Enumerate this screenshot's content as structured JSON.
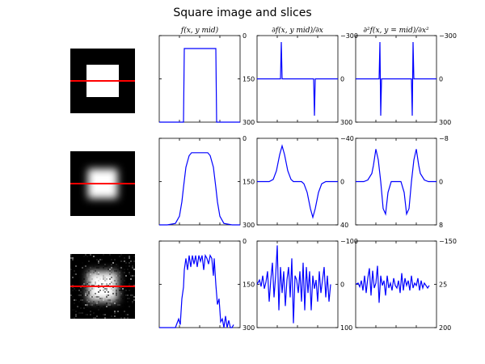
{
  "title": "Square image and slices",
  "colors": {
    "line": "#0000ff",
    "slice": "#ff0000",
    "image_bg": "#000000",
    "image_fg": "#ffffff"
  },
  "chart_data": [
    {
      "type": "image",
      "row": 0,
      "col": 0,
      "style": "sharp",
      "slice_position": 0.5
    },
    {
      "type": "line",
      "row": 0,
      "col": 1,
      "title": "f(x, y    mid)",
      "ylim": [
        0,
        300
      ],
      "yticks": [
        "0",
        "150",
        "300"
      ],
      "tick_side": "right",
      "x": [
        0,
        10,
        22,
        30,
        31,
        70,
        71,
        80,
        100
      ],
      "values": [
        0,
        0,
        0,
        0,
        255,
        255,
        0,
        0,
        0
      ]
    },
    {
      "type": "line",
      "row": 0,
      "col": 2,
      "title": "∂f(x, y    mid)/∂x",
      "ylim": [
        -300,
        300
      ],
      "yticks": [
        "−300",
        "0",
        "300"
      ],
      "tick_side": "right",
      "x": [
        0,
        25,
        29,
        30,
        31,
        33,
        70,
        71,
        72,
        74,
        100
      ],
      "values": [
        0,
        0,
        0,
        255,
        0,
        0,
        0,
        -255,
        0,
        0,
        0
      ]
    },
    {
      "type": "line",
      "row": 0,
      "col": 3,
      "title": "∂²f(x, y = mid)/∂x²",
      "ylim": [
        -300,
        300
      ],
      "yticks": [
        "−300",
        "0",
        "300"
      ],
      "tick_side": "right",
      "x": [
        0,
        10,
        28,
        29,
        30,
        31,
        32,
        69,
        70,
        71,
        72,
        73,
        90,
        100
      ],
      "values": [
        0,
        0,
        0,
        0,
        255,
        -255,
        0,
        0,
        -255,
        255,
        0,
        0,
        0,
        0
      ]
    },
    {
      "type": "image",
      "row": 1,
      "col": 0,
      "style": "blurred",
      "slice_position": 0.5
    },
    {
      "type": "line",
      "row": 1,
      "col": 1,
      "title": "",
      "ylim": [
        0,
        300
      ],
      "yticks": [
        "0",
        "150",
        "300"
      ],
      "tick_side": "right",
      "x": [
        0,
        10,
        20,
        25,
        28,
        30,
        33,
        37,
        40,
        60,
        63,
        67,
        70,
        72,
        75,
        80,
        90,
        100
      ],
      "values": [
        0,
        0,
        5,
        30,
        80,
        130,
        200,
        240,
        250,
        250,
        240,
        200,
        130,
        80,
        30,
        5,
        0,
        0
      ]
    },
    {
      "type": "line",
      "row": 1,
      "col": 2,
      "title": "",
      "ylim": [
        -40,
        40
      ],
      "yticks": [
        "−40",
        "0",
        "40"
      ],
      "tick_side": "right",
      "x": [
        0,
        15,
        20,
        24,
        28,
        31,
        34,
        38,
        42,
        45,
        55,
        58,
        62,
        66,
        69,
        72,
        76,
        80,
        85,
        100
      ],
      "values": [
        0,
        0,
        2,
        10,
        25,
        33,
        25,
        10,
        2,
        0,
        0,
        -2,
        -10,
        -25,
        -33,
        -25,
        -10,
        -2,
        0,
        0
      ]
    },
    {
      "type": "line",
      "row": 1,
      "col": 3,
      "title": "",
      "ylim": [
        -8,
        8
      ],
      "yticks": [
        "−8",
        "0",
        "8"
      ],
      "tick_side": "right",
      "x": [
        0,
        10,
        15,
        20,
        22,
        25,
        28,
        31,
        34,
        37,
        40,
        44,
        56,
        60,
        63,
        66,
        69,
        72,
        75,
        78,
        80,
        85,
        90,
        100
      ],
      "values": [
        0,
        0,
        0.3,
        1.5,
        3,
        6,
        4,
        0,
        -5,
        -6,
        -2,
        0,
        0,
        -2,
        -6,
        -5,
        0,
        4,
        6,
        3,
        1.5,
        0.3,
        0,
        0
      ]
    },
    {
      "type": "image",
      "row": 2,
      "col": 0,
      "style": "noisy",
      "slice_position": 0.5
    },
    {
      "type": "line",
      "row": 2,
      "col": 1,
      "title": "",
      "ylim": [
        0,
        300
      ],
      "yticks": [
        "0",
        "150",
        "300"
      ],
      "tick_side": "right",
      "x": [
        0,
        5,
        10,
        15,
        20,
        24,
        26,
        28,
        30,
        31,
        33,
        35,
        37,
        39,
        41,
        43,
        45,
        47,
        49,
        51,
        53,
        55,
        57,
        59,
        61,
        63,
        65,
        67,
        68,
        70,
        72,
        74,
        76,
        78,
        80,
        82,
        84,
        86,
        88,
        90,
        92
      ],
      "values": [
        0,
        0,
        0,
        0,
        0,
        30,
        10,
        100,
        140,
        200,
        240,
        200,
        250,
        210,
        250,
        220,
        250,
        210,
        250,
        230,
        250,
        200,
        250,
        240,
        220,
        250,
        240,
        180,
        240,
        150,
        80,
        100,
        20,
        30,
        0,
        40,
        0,
        25,
        0,
        0,
        10
      ]
    },
    {
      "type": "line",
      "row": 2,
      "col": 2,
      "title": "",
      "ylim": [
        -100,
        100
      ],
      "yticks": [
        "−100",
        "0",
        "100"
      ],
      "tick_side": "right",
      "x": [
        0,
        3,
        5,
        7,
        9,
        11,
        13,
        15,
        17,
        19,
        21,
        23,
        25,
        27,
        29,
        31,
        33,
        35,
        37,
        39,
        41,
        43,
        45,
        47,
        49,
        51,
        53,
        55,
        57,
        59,
        61,
        63,
        65,
        67,
        69,
        71,
        73,
        75,
        77,
        79,
        81,
        83,
        85,
        87,
        89,
        91
      ],
      "values": [
        0,
        10,
        -5,
        20,
        -10,
        5,
        30,
        -40,
        10,
        50,
        -30,
        20,
        90,
        -60,
        40,
        -20,
        30,
        -50,
        10,
        40,
        -30,
        60,
        -90,
        20,
        10,
        -20,
        30,
        -40,
        50,
        -60,
        40,
        -20,
        30,
        -60,
        20,
        -10,
        10,
        -40,
        30,
        -20,
        10,
        40,
        -30,
        20,
        -40,
        0
      ]
    },
    {
      "type": "line",
      "row": 2,
      "col": 3,
      "title": "",
      "ylim": [
        -150,
        200
      ],
      "yticks": [
        "−150",
        "25",
        "200"
      ],
      "tick_side": "right",
      "x": [
        0,
        3,
        5,
        7,
        9,
        11,
        13,
        15,
        17,
        19,
        21,
        23,
        25,
        27,
        29,
        31,
        33,
        35,
        37,
        39,
        41,
        43,
        45,
        47,
        49,
        51,
        53,
        55,
        57,
        59,
        61,
        63,
        65,
        67,
        69,
        71,
        73,
        75,
        77,
        79,
        81,
        83,
        85,
        87,
        89,
        91
      ],
      "values": [
        25,
        30,
        15,
        40,
        0,
        60,
        -10,
        50,
        90,
        -20,
        80,
        10,
        30,
        100,
        -50,
        60,
        20,
        40,
        -20,
        60,
        10,
        30,
        0,
        50,
        20,
        10,
        40,
        -10,
        70,
        0,
        50,
        20,
        40,
        0,
        60,
        10,
        30,
        20,
        50,
        0,
        40,
        10,
        30,
        20,
        10,
        20
      ]
    }
  ]
}
